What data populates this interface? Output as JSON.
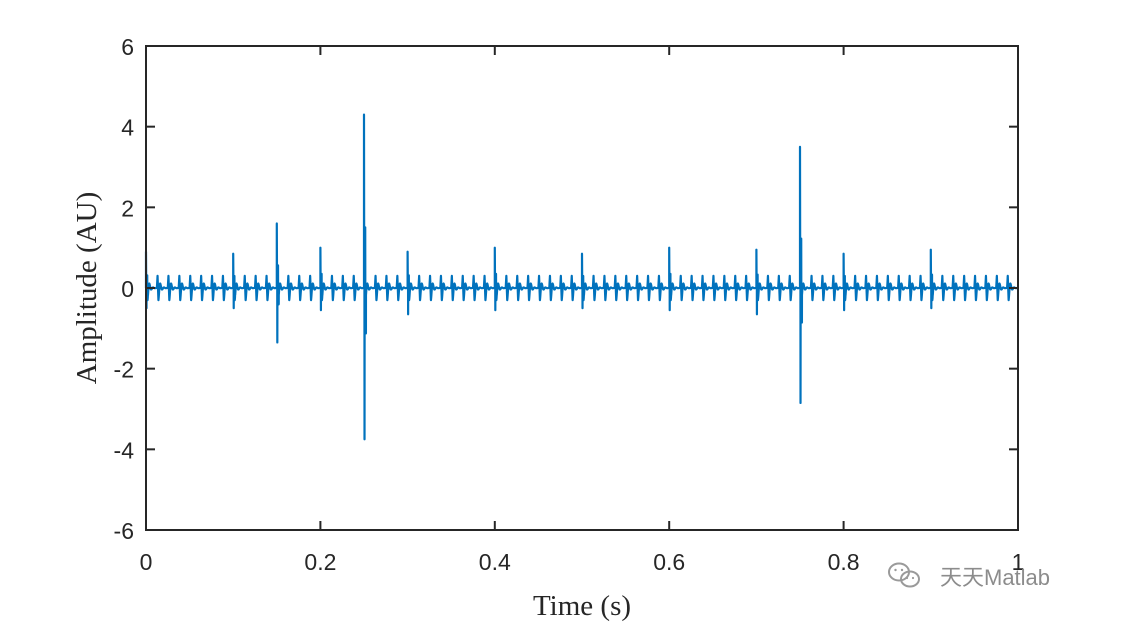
{
  "chart_data": {
    "type": "line",
    "title": "",
    "xlabel": "Time (s)",
    "ylabel": "Amplitude (AU)",
    "xlim": [
      0,
      1
    ],
    "ylim": [
      -6,
      6
    ],
    "xticks": [
      0,
      0.2,
      0.4,
      0.6,
      0.8,
      1
    ],
    "yticks": [
      -6,
      -4,
      -2,
      0,
      2,
      4,
      6
    ],
    "xtick_labels": [
      "0",
      "0.2",
      "0.4",
      "0.6",
      "0.8",
      "1"
    ],
    "ytick_labels": [
      "-6",
      "-4",
      "-2",
      "0",
      "2",
      "4",
      "6"
    ],
    "grid": false,
    "legend": "none",
    "series": [
      {
        "color": "#0072BD",
        "description_points": "periodic oscillation ~±0.3 with impulse spikes",
        "spikes": [
          {
            "x": 0.0,
            "peak": 0.9,
            "trough": -0.5
          },
          {
            "x": 0.1,
            "peak": 0.85,
            "trough": -0.5
          },
          {
            "x": 0.15,
            "peak": 1.6,
            "trough": -1.35
          },
          {
            "x": 0.2,
            "peak": 1.0,
            "trough": -0.55
          },
          {
            "x": 0.25,
            "peak": 4.3,
            "trough": -3.75
          },
          {
            "x": 0.3,
            "peak": 0.9,
            "trough": -0.65
          },
          {
            "x": 0.4,
            "peak": 1.0,
            "trough": -0.55
          },
          {
            "x": 0.5,
            "peak": 0.85,
            "trough": -0.5
          },
          {
            "x": 0.6,
            "peak": 1.0,
            "trough": -0.55
          },
          {
            "x": 0.7,
            "peak": 0.95,
            "trough": -0.65
          },
          {
            "x": 0.75,
            "peak": 3.5,
            "trough": -2.85
          },
          {
            "x": 0.8,
            "peak": 0.85,
            "trough": -0.55
          },
          {
            "x": 0.9,
            "peak": 0.95,
            "trough": -0.5
          }
        ],
        "base_amplitude": 0.3,
        "base_period": 0.0125
      }
    ]
  },
  "watermark": {
    "text": "天天Matlab",
    "icon": "wechat-icon"
  },
  "colors": {
    "line": "#0072BD",
    "axis": "#262626"
  }
}
